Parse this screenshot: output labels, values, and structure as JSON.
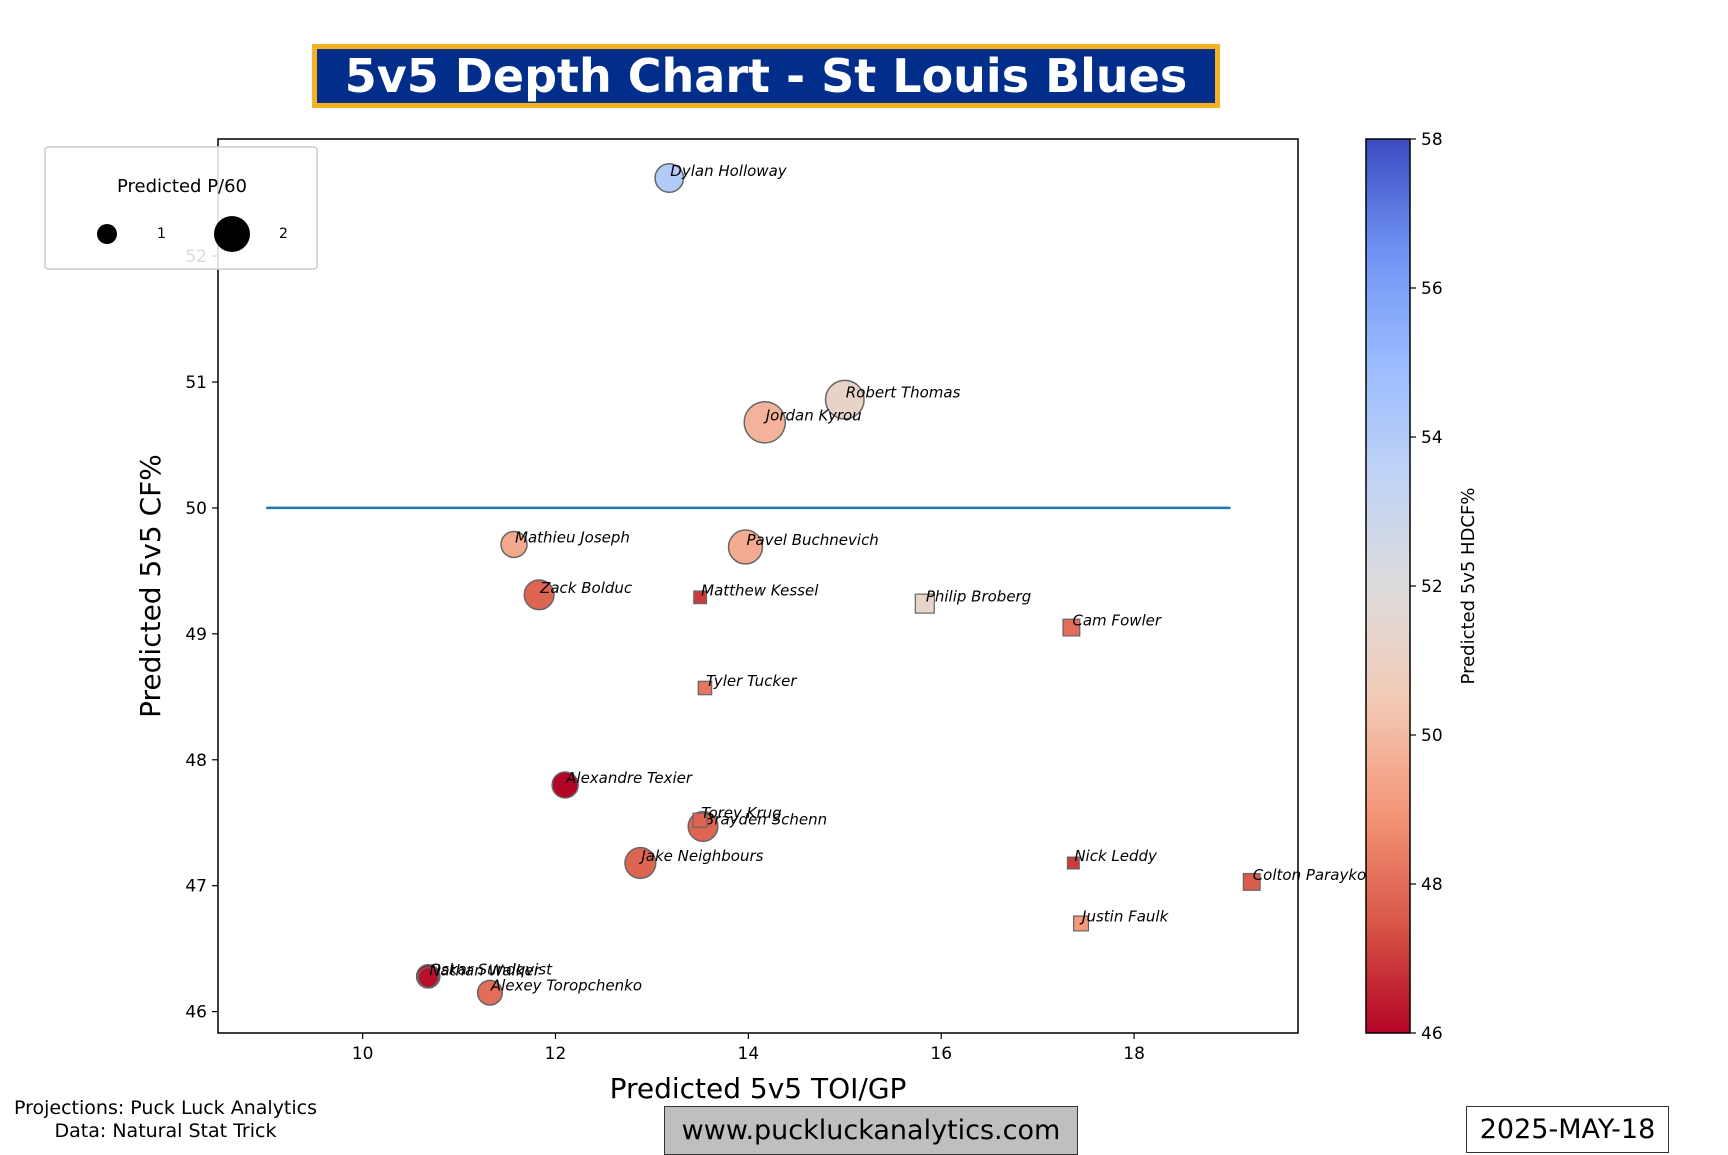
{
  "title": "5v5 Depth Chart - St Louis Blues",
  "footer": {
    "projections": "Projections: Puck Luck Analytics",
    "data_source": "Data: Natural Stat Trick",
    "website": "www.puckluckanalytics.com",
    "date": "2025-MAY-18"
  },
  "colors": {
    "title_bg": "#012e8b",
    "title_border": "#f4b223",
    "reference_line": "#1f77b4"
  },
  "chart_data": {
    "type": "scatter",
    "xlabel": "Predicted 5v5 TOI/GP",
    "ylabel": "Predicted 5v5 CF%",
    "xlim": [
      8.5,
      19.7
    ],
    "ylim": [
      45.83,
      52.93
    ],
    "x_ticks": [
      "10",
      "12",
      "14",
      "16",
      "18"
    ],
    "y_ticks": [
      "46",
      "47",
      "48",
      "49",
      "50",
      "51",
      "52"
    ],
    "reference_line": {
      "y": 50,
      "x_start": 9,
      "x_end": 19
    },
    "colorbar": {
      "label": "Predicted 5v5 HDCF%",
      "min": 46,
      "max": 58,
      "ticks": [
        "46",
        "48",
        "50",
        "52",
        "54",
        "56",
        "58"
      ],
      "colormap": "coolwarm_r"
    },
    "size_legend": {
      "title": "Predicted P/60",
      "entries": [
        {
          "label": "1",
          "value": 1
        },
        {
          "label": "2",
          "value": 2
        }
      ]
    },
    "series": [
      {
        "kind": "forward",
        "marker": "circle",
        "points": [
          {
            "name": "Dylan Holloway",
            "x": 13.18,
            "y": 52.62,
            "p60": 1.2,
            "hdcf": 54.0
          },
          {
            "name": "Robert Thomas",
            "x": 15.0,
            "y": 50.86,
            "p60": 2.2,
            "hdcf": 51.2
          },
          {
            "name": "Jordan Kyrou",
            "x": 14.17,
            "y": 50.68,
            "p60": 2.5,
            "hdcf": 49.8
          },
          {
            "name": "Mathieu Joseph",
            "x": 11.57,
            "y": 49.71,
            "p60": 1.0,
            "hdcf": 49.5
          },
          {
            "name": "Pavel Buchnevich",
            "x": 13.97,
            "y": 49.69,
            "p60": 1.7,
            "hdcf": 49.6
          },
          {
            "name": "Zack Bolduc",
            "x": 11.83,
            "y": 49.31,
            "p60": 1.3,
            "hdcf": 47.8
          },
          {
            "name": "Alexandre Texier",
            "x": 12.1,
            "y": 47.8,
            "p60": 1.0,
            "hdcf": 46.0
          },
          {
            "name": "Brayden Schenn",
            "x": 13.53,
            "y": 47.47,
            "p60": 1.3,
            "hdcf": 47.8
          },
          {
            "name": "Jake Neighbours",
            "x": 12.88,
            "y": 47.18,
            "p60": 1.4,
            "hdcf": 47.8
          },
          {
            "name": "Oskar Sundqvist",
            "x": 10.68,
            "y": 46.28,
            "p60": 0.8,
            "hdcf": 46.0
          },
          {
            "name": "Nathan Walker",
            "x": 10.68,
            "y": 46.27,
            "p60": 0.6,
            "hdcf": 46.2
          },
          {
            "name": "Alexey Toropchenko",
            "x": 11.32,
            "y": 46.15,
            "p60": 0.9,
            "hdcf": 48.0
          }
        ]
      },
      {
        "kind": "defense",
        "marker": "square",
        "points": [
          {
            "name": "Matthew Kessel",
            "x": 13.5,
            "y": 49.29,
            "p60": 0.4,
            "hdcf": 47.0
          },
          {
            "name": "Philip Broberg",
            "x": 15.83,
            "y": 49.24,
            "p60": 0.9,
            "hdcf": 51.3
          },
          {
            "name": "Cam Fowler",
            "x": 17.35,
            "y": 49.05,
            "p60": 0.7,
            "hdcf": 48.0
          },
          {
            "name": "Tyler Tucker",
            "x": 13.55,
            "y": 48.57,
            "p60": 0.45,
            "hdcf": 48.2
          },
          {
            "name": "Torey Krug",
            "x": 13.5,
            "y": 47.52,
            "p60": 0.5,
            "hdcf": 47.8
          },
          {
            "name": "Nick Leddy",
            "x": 17.37,
            "y": 47.18,
            "p60": 0.35,
            "hdcf": 47.0
          },
          {
            "name": "Colton Parayko",
            "x": 19.22,
            "y": 47.03,
            "p60": 0.7,
            "hdcf": 47.6
          },
          {
            "name": "Justin Faulk",
            "x": 17.45,
            "y": 46.7,
            "p60": 0.55,
            "hdcf": 49.0
          }
        ]
      }
    ]
  }
}
